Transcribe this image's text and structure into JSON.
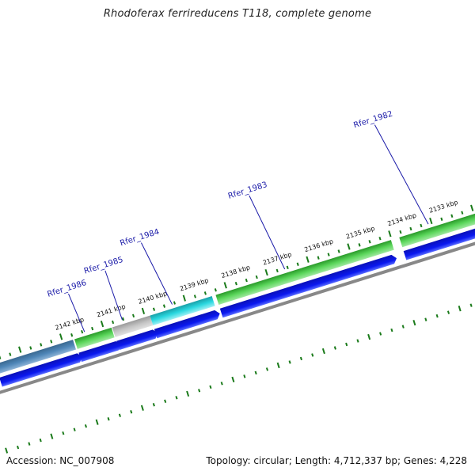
{
  "title": "Rhodoferax ferrireducens T118, complete genome",
  "footer": {
    "accession": "Accession: NC_007908",
    "topology": "Topology: circular; Length: 4,712,337 bp; Genes: 4,228"
  },
  "colors": {
    "cds": "#0a14e6",
    "gene_green": "#3cc83c",
    "gene_grey": "#b4b4b4",
    "gene_cyan": "#1ec8d2",
    "gene_steel": "#4a7fb0",
    "backbone": "#888888",
    "ticks": "#1a7a1a",
    "label": "#1a1aa8"
  },
  "kbp_labels": [
    {
      "text": "2142 kbp",
      "kbp": 2142
    },
    {
      "text": "2141 kbp",
      "kbp": 2141
    },
    {
      "text": "2140 kbp",
      "kbp": 2140
    },
    {
      "text": "2139 kbp",
      "kbp": 2139
    },
    {
      "text": "2138 kbp",
      "kbp": 2138
    },
    {
      "text": "2137 kbp",
      "kbp": 2137
    },
    {
      "text": "2136 kbp",
      "kbp": 2136
    },
    {
      "text": "2135 kbp",
      "kbp": 2135
    },
    {
      "text": "2134 kbp",
      "kbp": 2134
    },
    {
      "text": "2133 kbp",
      "kbp": 2133
    }
  ],
  "gene_labels": [
    {
      "text": "Rfer_1986"
    },
    {
      "text": "Rfer_1985"
    },
    {
      "text": "Rfer_1984"
    },
    {
      "text": "Rfer_1983"
    },
    {
      "text": "Rfer_1982"
    }
  ]
}
